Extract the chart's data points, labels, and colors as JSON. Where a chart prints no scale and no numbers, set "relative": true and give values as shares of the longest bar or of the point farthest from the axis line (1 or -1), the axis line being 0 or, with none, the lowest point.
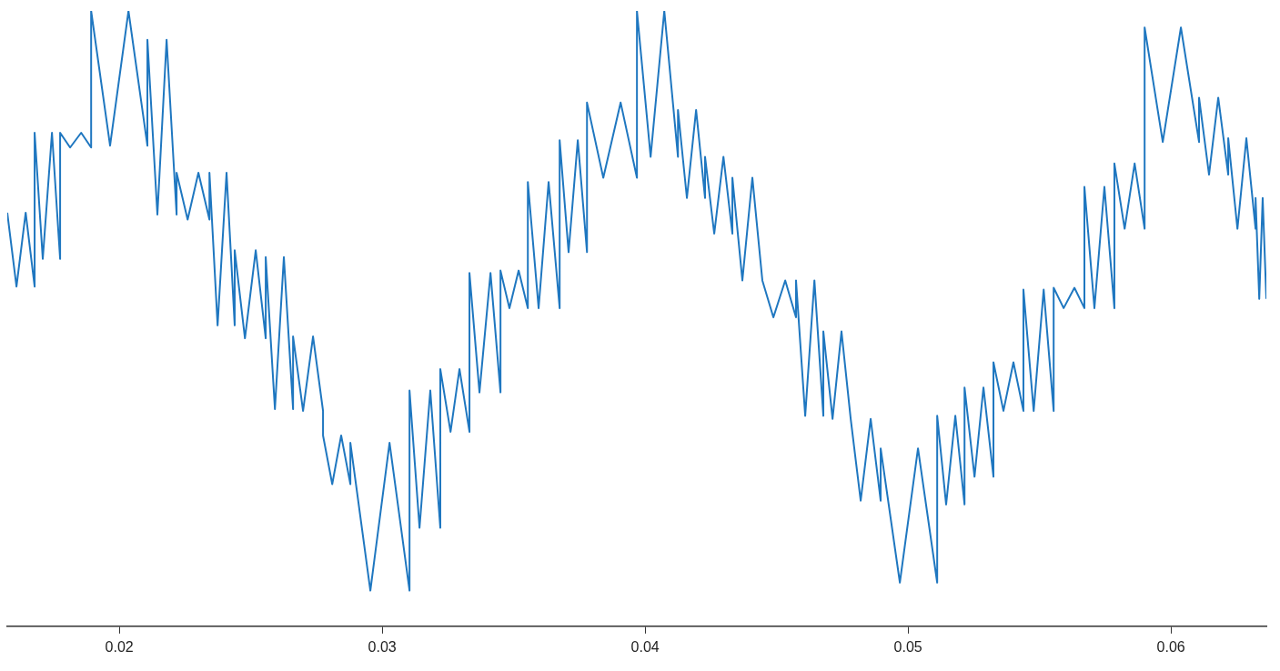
{
  "chart_data": {
    "type": "line",
    "relative": true,
    "marker": "none",
    "grid": false,
    "legend": false,
    "xlim": [
      0.01574,
      0.06363
    ],
    "xticks": [
      0.02,
      0.03,
      0.04,
      0.05,
      0.06
    ],
    "series": [
      {
        "color": "#1f77c0",
        "x": [
          0.01574,
          0.01609,
          0.01644,
          0.01678,
          0.01678,
          0.01709,
          0.01744,
          0.01775,
          0.01775,
          0.01813,
          0.01855,
          0.01893,
          0.01893,
          0.01965,
          0.02035,
          0.02107,
          0.02107,
          0.02145,
          0.0218,
          0.02218,
          0.02218,
          0.0226,
          0.02301,
          0.02343,
          0.02343,
          0.02374,
          0.02408,
          0.02439,
          0.02439,
          0.02478,
          0.02519,
          0.02557,
          0.02557,
          0.02592,
          0.02626,
          0.02661,
          0.02661,
          0.02699,
          0.02737,
          0.02775,
          0.02775,
          0.0281,
          0.02844,
          0.02879,
          0.02879,
          0.02955,
          0.03028,
          0.03104,
          0.03104,
          0.03142,
          0.03183,
          0.03221,
          0.03221,
          0.0326,
          0.03294,
          0.03332,
          0.03332,
          0.0337,
          0.03412,
          0.0345,
          0.0345,
          0.03484,
          0.03519,
          0.03554,
          0.03554,
          0.03595,
          0.03633,
          0.03675,
          0.03675,
          0.03709,
          0.03744,
          0.03779,
          0.03779,
          0.03841,
          0.03907,
          0.03969,
          0.03969,
          0.04021,
          0.04073,
          0.04125,
          0.04125,
          0.04159,
          0.04194,
          0.04228,
          0.04228,
          0.04263,
          0.04298,
          0.04332,
          0.04332,
          0.0437,
          0.04408,
          0.04446,
          0.04446,
          0.04488,
          0.04533,
          0.04574,
          0.04574,
          0.04609,
          0.04644,
          0.04678,
          0.04678,
          0.04713,
          0.04747,
          0.04782,
          0.04782,
          0.0482,
          0.04858,
          0.04896,
          0.04896,
          0.04969,
          0.05038,
          0.05111,
          0.05111,
          0.05145,
          0.0518,
          0.05215,
          0.05215,
          0.05253,
          0.05287,
          0.05325,
          0.05325,
          0.05363,
          0.05401,
          0.05439,
          0.05439,
          0.05478,
          0.05516,
          0.05554,
          0.05554,
          0.05592,
          0.05633,
          0.05671,
          0.05671,
          0.05709,
          0.05747,
          0.05785,
          0.05785,
          0.05824,
          0.05862,
          0.059,
          0.059,
          0.05969,
          0.06038,
          0.06107,
          0.06107,
          0.06145,
          0.0618,
          0.06218,
          0.06218,
          0.06253,
          0.06287,
          0.06322,
          0.06322,
          0.06336,
          0.06349,
          0.06363
        ],
        "values": [
          0.672,
          0.552,
          0.672,
          0.552,
          0.802,
          0.597,
          0.802,
          0.597,
          0.802,
          0.778,
          0.802,
          0.778,
          1.0,
          0.781,
          1.0,
          0.781,
          0.953,
          0.669,
          0.953,
          0.669,
          0.737,
          0.661,
          0.737,
          0.661,
          0.737,
          0.489,
          0.737,
          0.489,
          0.611,
          0.468,
          0.611,
          0.468,
          0.6,
          0.353,
          0.6,
          0.353,
          0.471,
          0.35,
          0.471,
          0.35,
          0.31,
          0.231,
          0.31,
          0.231,
          0.298,
          0.058,
          0.298,
          0.058,
          0.383,
          0.16,
          0.383,
          0.16,
          0.418,
          0.316,
          0.418,
          0.316,
          0.574,
          0.38,
          0.574,
          0.38,
          0.578,
          0.517,
          0.578,
          0.517,
          0.722,
          0.517,
          0.722,
          0.517,
          0.79,
          0.608,
          0.79,
          0.608,
          0.851,
          0.729,
          0.851,
          0.729,
          1.0,
          0.763,
          1.0,
          0.763,
          0.839,
          0.696,
          0.839,
          0.696,
          0.763,
          0.638,
          0.763,
          0.638,
          0.729,
          0.562,
          0.729,
          0.562,
          0.562,
          0.502,
          0.562,
          0.502,
          0.562,
          0.342,
          0.562,
          0.342,
          0.479,
          0.337,
          0.479,
          0.337,
          0.337,
          0.204,
          0.337,
          0.204,
          0.289,
          0.071,
          0.289,
          0.071,
          0.342,
          0.198,
          0.342,
          0.198,
          0.388,
          0.243,
          0.388,
          0.243,
          0.429,
          0.35,
          0.429,
          0.35,
          0.547,
          0.35,
          0.547,
          0.35,
          0.55,
          0.517,
          0.55,
          0.517,
          0.714,
          0.517,
          0.714,
          0.517,
          0.752,
          0.646,
          0.752,
          0.646,
          0.973,
          0.787,
          0.973,
          0.787,
          0.859,
          0.734,
          0.859,
          0.734,
          0.793,
          0.646,
          0.793,
          0.646,
          0.696,
          0.532,
          0.696,
          0.532
        ]
      }
    ]
  }
}
